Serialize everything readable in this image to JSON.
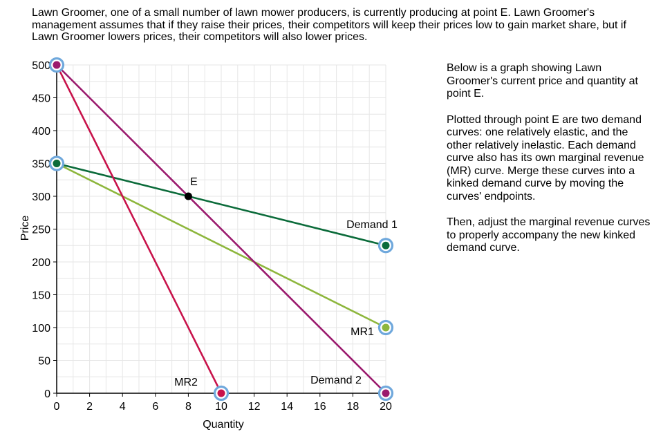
{
  "intro_text": "Lawn Groomer, one of a small number of lawn mower producers, is currently producing at point E. Lawn Groomer's management assumes that if they raise their prices, their competitors will keep their prices low to gain market share, but if Lawn Groomer lowers prices, their competitors will also lower prices.",
  "instructions": {
    "p1": "Below is a graph showing Lawn Groomer's current price and quantity at point E.",
    "p2": "Plotted through point E are two demand curves: one relatively elastic, and the other relatively inelastic. Each demand curve also has its own marginal revenue (MR) curve. Merge these curves into a kinked demand curve by moving the curves' endpoints.",
    "p3": "Then, adjust the marginal revenue curves to properly accompany the new kinked demand curve."
  },
  "chart_data": {
    "type": "line",
    "xlabel": "Quantity",
    "ylabel": "Price",
    "xlim": [
      0,
      20
    ],
    "ylim": [
      0,
      500
    ],
    "x_ticks": [
      0,
      2,
      4,
      6,
      8,
      10,
      12,
      14,
      16,
      18,
      20
    ],
    "y_ticks": [
      0,
      50,
      100,
      150,
      200,
      250,
      300,
      350,
      400,
      450,
      500
    ],
    "grid": true,
    "series": [
      {
        "key": "demand1",
        "name": "Demand 1",
        "color": "#0b6b3a",
        "points": [
          [
            0,
            350
          ],
          [
            20,
            225
          ]
        ]
      },
      {
        "key": "mr1",
        "name": "MR1",
        "color": "#8db63c",
        "points": [
          [
            0,
            350
          ],
          [
            20,
            100
          ]
        ]
      },
      {
        "key": "demand2",
        "name": "Demand 2",
        "color": "#9b1b6e",
        "points": [
          [
            0,
            500
          ],
          [
            20,
            0
          ]
        ]
      },
      {
        "key": "mr2",
        "name": "MR2",
        "color": "#c8134b",
        "points": [
          [
            0,
            500
          ],
          [
            10,
            0
          ]
        ]
      }
    ],
    "point_e": {
      "label": "E",
      "x": 8,
      "y": 300
    },
    "handle_ring_color": "#6fa8dc"
  }
}
